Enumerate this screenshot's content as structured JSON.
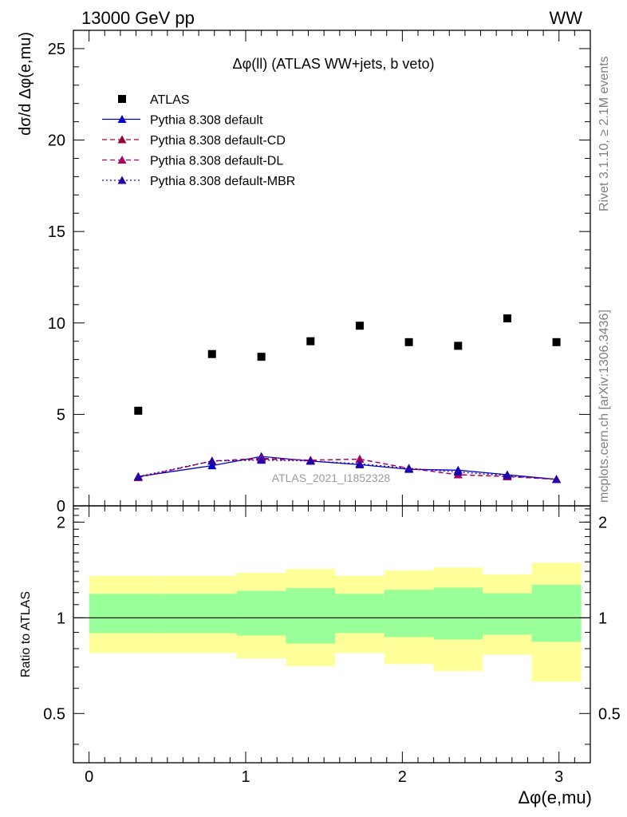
{
  "header": {
    "left": "13000 GeV pp",
    "right": "WW"
  },
  "side_labels": {
    "rivet": "Rivet 3.1.10, ≥ 2.1M events",
    "mcplots": "mcplots.cern.ch [arXiv:1306.3436]"
  },
  "colors": {
    "atlas": "#000000",
    "default": "#0000cc",
    "cd": "#990033",
    "dl": "#aa0066",
    "mbr": "#2200aa",
    "band_outer": "#ffff99",
    "band_inner": "#99ff99"
  },
  "chart_data": [
    {
      "type": "scatter",
      "title": "Δφ(ll) (ATLAS WW+jets, b veto)",
      "ylabel": "dσ/d Δφ(e,mu)",
      "xlabel": "",
      "xlim": [
        -0.1,
        3.2
      ],
      "ylim": [
        0,
        26
      ],
      "y_ticks": [
        "0",
        "5",
        "10",
        "15",
        "20",
        "25"
      ],
      "watermark": "ATLAS_2021_I1852328",
      "legend_position": "top-left",
      "series": [
        {
          "name": "ATLAS",
          "style": "points",
          "color": "#000000",
          "x": [
            0.314,
            0.785,
            1.1,
            1.414,
            1.728,
            2.042,
            2.356,
            2.67,
            2.984
          ],
          "y": [
            5.2,
            8.3,
            8.15,
            9.0,
            9.85,
            8.95,
            8.75,
            10.25,
            8.95
          ]
        },
        {
          "name": "Pythia 8.308 default",
          "style": "solid",
          "color": "#0000cc",
          "x": [
            0.314,
            0.785,
            1.1,
            1.414,
            1.728,
            2.042,
            2.356,
            2.67,
            2.984
          ],
          "y": [
            1.6,
            2.2,
            2.7,
            2.45,
            2.25,
            2.0,
            1.95,
            1.7,
            1.45
          ]
        },
        {
          "name": "Pythia 8.308 default-CD",
          "style": "dashed",
          "color": "#990033",
          "x": [
            0.314,
            0.785,
            1.1,
            1.414,
            1.728,
            2.042,
            2.356,
            2.67,
            2.984
          ],
          "y": [
            1.55,
            2.45,
            2.55,
            2.5,
            2.55,
            2.05,
            1.7,
            1.6,
            1.45
          ]
        },
        {
          "name": "Pythia 8.308 default-DL",
          "style": "dashed",
          "color": "#aa0066",
          "x": [
            0.314,
            0.785,
            1.1,
            1.414,
            1.728,
            2.042,
            2.356,
            2.67,
            2.984
          ],
          "y": [
            1.55,
            2.45,
            2.6,
            2.5,
            2.55,
            2.05,
            1.7,
            1.6,
            1.45
          ]
        },
        {
          "name": "Pythia 8.308 default-MBR",
          "style": "dotted",
          "color": "#2200aa",
          "x": [
            0.314,
            0.785,
            1.1,
            1.414,
            1.728,
            2.042,
            2.356,
            2.67,
            2.984
          ],
          "y": [
            1.6,
            2.45,
            2.5,
            2.45,
            2.3,
            2.05,
            1.85,
            1.65,
            1.45
          ]
        }
      ]
    },
    {
      "type": "area",
      "ylabel": "Ratio to ATLAS",
      "xlabel": "Δφ(e,mu)",
      "xlim": [
        -0.1,
        3.2
      ],
      "ylim": [
        0.35,
        2.25
      ],
      "y_ticks": [
        "0.5",
        "1",
        "2"
      ],
      "x_ticks": [
        "0",
        "1",
        "2",
        "3"
      ],
      "reference_line": 1,
      "bins": {
        "edges": [
          0.0,
          0.471,
          0.942,
          1.257,
          1.571,
          1.885,
          2.199,
          2.513,
          2.827,
          3.142
        ],
        "inner_low": [
          0.895,
          0.895,
          0.88,
          0.83,
          0.895,
          0.87,
          0.855,
          0.885,
          0.84
        ],
        "inner_high": [
          1.19,
          1.19,
          1.215,
          1.24,
          1.19,
          1.225,
          1.245,
          1.195,
          1.27
        ],
        "outer_low": [
          0.775,
          0.775,
          0.745,
          0.705,
          0.775,
          0.715,
          0.68,
          0.765,
          0.63
        ],
        "outer_high": [
          1.355,
          1.355,
          1.385,
          1.425,
          1.355,
          1.41,
          1.44,
          1.37,
          1.49
        ]
      }
    }
  ]
}
